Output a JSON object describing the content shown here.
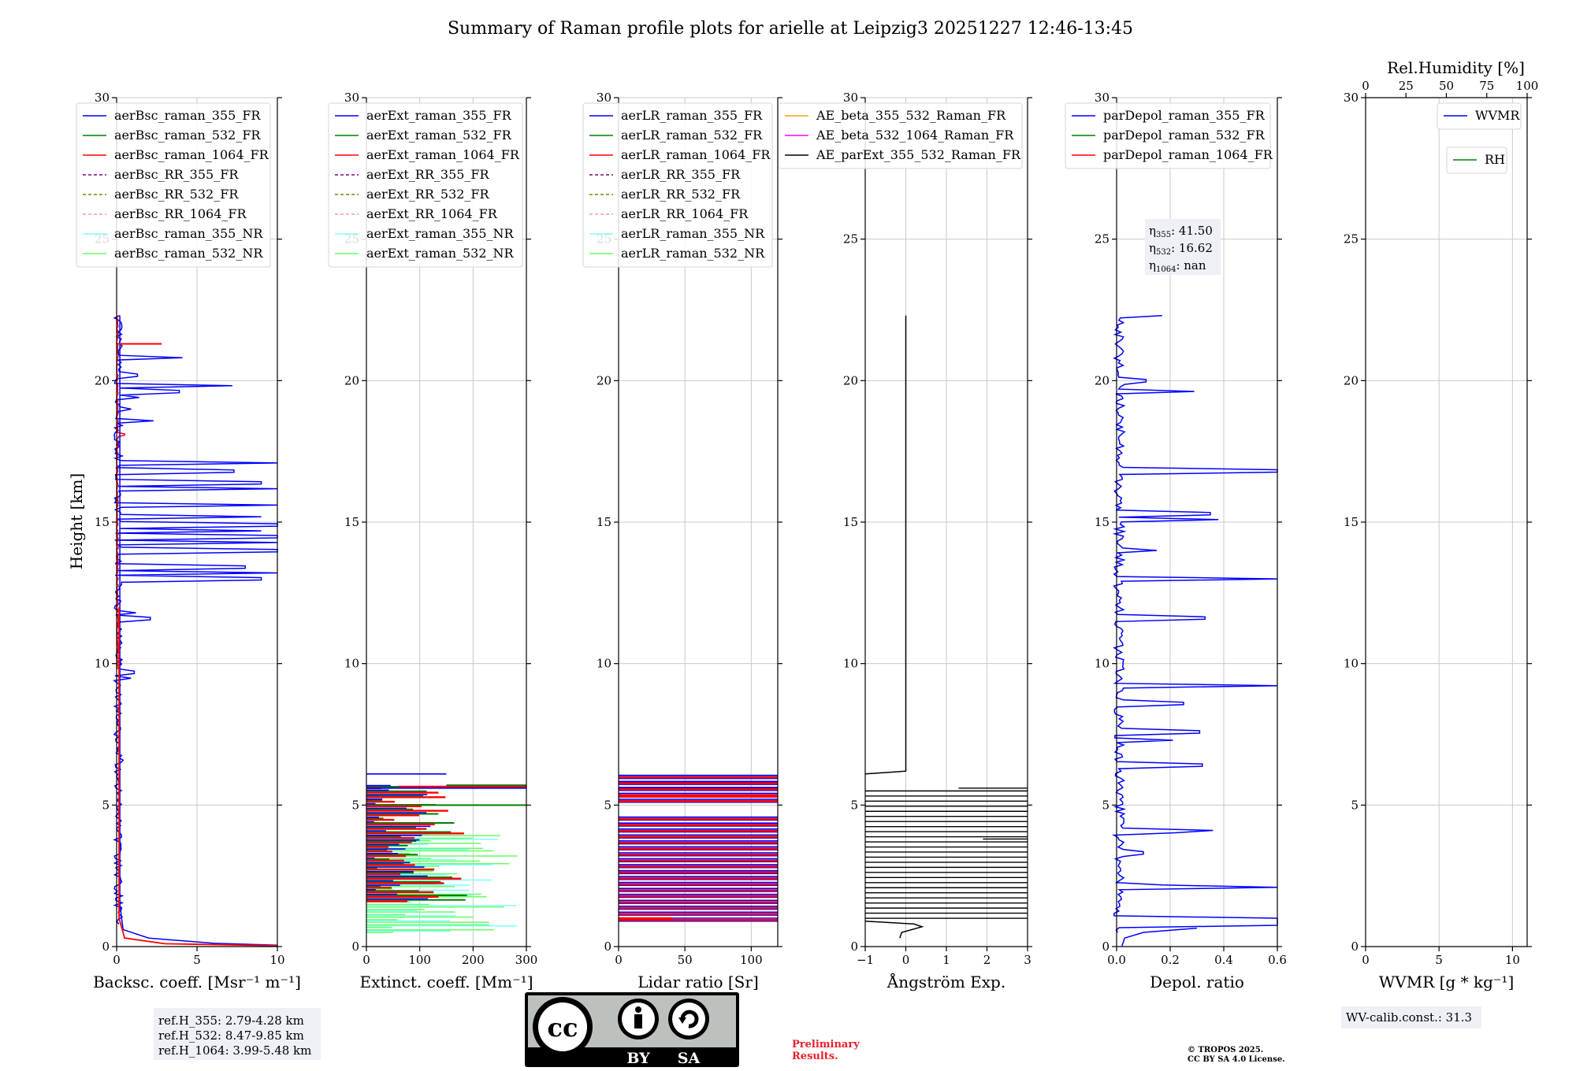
{
  "title": "Summary of Raman profile plots for arielle at Leipzig3 20251227 12:46-13:45",
  "ylabel": "Height [km]",
  "ylim": [
    0,
    30
  ],
  "yticks": [
    0,
    5,
    10,
    15,
    20,
    25,
    30
  ],
  "colors": {
    "blue": "#0000ff",
    "green": "#008000",
    "red": "#ff0000",
    "purple": "#800080",
    "olive": "#808000",
    "salmon": "#ff9999",
    "cyan": "#7fffff",
    "lightgreen": "#66ff66",
    "orange": "#ffa500",
    "magenta": "#ff00ff",
    "black": "#000000"
  },
  "chart_data": [
    {
      "type": "line",
      "id": "bsc",
      "xlabel": "Backsc. coeff. [Msr⁻¹ m⁻¹]",
      "xlim": [
        0,
        10
      ],
      "xticks": [
        "0",
        "5",
        "10"
      ],
      "xtickvals": [
        0,
        5,
        10
      ],
      "legend": [
        {
          "label": "aerBsc_raman_355_FR",
          "color": "blue",
          "style": "solid"
        },
        {
          "label": "aerBsc_raman_532_FR",
          "color": "green",
          "style": "solid"
        },
        {
          "label": "aerBsc_raman_1064_FR",
          "color": "red",
          "style": "solid"
        },
        {
          "label": "aerBsc_RR_355_FR",
          "color": "purple",
          "style": "dashed"
        },
        {
          "label": "aerBsc_RR_532_FR",
          "color": "olive",
          "style": "dashed"
        },
        {
          "label": "aerBsc_RR_1064_FR",
          "color": "salmon",
          "style": "dashed"
        },
        {
          "label": "aerBsc_raman_355_NR",
          "color": "cyan",
          "style": "solid"
        },
        {
          "label": "aerBsc_raman_532_NR",
          "color": "lightgreen",
          "style": "solid"
        }
      ]
    },
    {
      "type": "line",
      "id": "ext",
      "xlabel": "Extinct. coeff. [Mm⁻¹]",
      "xlim": [
        0,
        300
      ],
      "xticks": [
        "0",
        "100",
        "200",
        "300"
      ],
      "xtickvals": [
        0,
        100,
        200,
        300
      ],
      "legend": [
        {
          "label": "aerExt_raman_355_FR",
          "color": "blue",
          "style": "solid"
        },
        {
          "label": "aerExt_raman_532_FR",
          "color": "green",
          "style": "solid"
        },
        {
          "label": "aerExt_raman_1064_FR",
          "color": "red",
          "style": "solid"
        },
        {
          "label": "aerExt_RR_355_FR",
          "color": "purple",
          "style": "dashed"
        },
        {
          "label": "aerExt_RR_532_FR",
          "color": "olive",
          "style": "dashed"
        },
        {
          "label": "aerExt_RR_1064_FR",
          "color": "salmon",
          "style": "dashed"
        },
        {
          "label": "aerExt_raman_355_NR",
          "color": "cyan",
          "style": "solid"
        },
        {
          "label": "aerExt_raman_532_NR",
          "color": "lightgreen",
          "style": "solid"
        }
      ]
    },
    {
      "type": "line",
      "id": "lr",
      "xlabel": "Lidar ratio [Sr]",
      "xlim": [
        0,
        120
      ],
      "xticks": [
        "0",
        "50",
        "100"
      ],
      "xtickvals": [
        0,
        50,
        100
      ],
      "legend": [
        {
          "label": "aerLR_raman_355_FR",
          "color": "blue",
          "style": "solid"
        },
        {
          "label": "aerLR_raman_532_FR",
          "color": "green",
          "style": "solid"
        },
        {
          "label": "aerLR_raman_1064_FR",
          "color": "red",
          "style": "solid"
        },
        {
          "label": "aerLR_RR_355_FR",
          "color": "purple",
          "style": "dashed"
        },
        {
          "label": "aerLR_RR_532_FR",
          "color": "olive",
          "style": "dashed"
        },
        {
          "label": "aerLR_RR_1064_FR",
          "color": "salmon",
          "style": "dashed"
        },
        {
          "label": "aerLR_raman_355_NR",
          "color": "cyan",
          "style": "solid"
        },
        {
          "label": "aerLR_raman_532_NR",
          "color": "lightgreen",
          "style": "solid"
        }
      ]
    },
    {
      "type": "line",
      "id": "ae",
      "xlabel": "Ångström Exp.",
      "xlim": [
        -1,
        3
      ],
      "xticks": [
        "−1",
        "0",
        "1",
        "2",
        "3"
      ],
      "xtickvals": [
        -1,
        0,
        1,
        2,
        3
      ],
      "legend": [
        {
          "label": "AE_beta_355_532_Raman_FR",
          "color": "orange",
          "style": "solid"
        },
        {
          "label": "AE_beta_532_1064_Raman_FR",
          "color": "magenta",
          "style": "solid"
        },
        {
          "label": "AE_parExt_355_532_Raman_FR",
          "color": "black",
          "style": "solid"
        }
      ]
    },
    {
      "type": "line",
      "id": "dep",
      "xlabel": "Depol. ratio",
      "xlim": [
        0,
        0.6
      ],
      "xticks": [
        "0.0",
        "0.2",
        "0.4",
        "0.6"
      ],
      "xtickvals": [
        0,
        0.2,
        0.4,
        0.6
      ],
      "legend": [
        {
          "label": "parDepol_raman_355_FR",
          "color": "blue",
          "style": "solid"
        },
        {
          "label": "parDepol_raman_532_FR",
          "color": "green",
          "style": "solid"
        },
        {
          "label": "parDepol_raman_1064_FR",
          "color": "red",
          "style": "solid"
        }
      ],
      "annotation": [
        {
          "sym": "η",
          "sub": "355",
          "value": ": 41.50"
        },
        {
          "sym": "η",
          "sub": "532",
          "value": ": 16.62"
        },
        {
          "sym": "η",
          "sub": "1064",
          "value": ": nan"
        }
      ]
    },
    {
      "type": "line",
      "id": "wv",
      "xlabel": "WVMR [g * kg⁻¹]",
      "xlim": [
        0,
        11
      ],
      "xticks": [
        "0",
        "5",
        "10"
      ],
      "xtickvals": [
        0,
        5,
        10
      ],
      "top_axis": {
        "label": "Rel.Humidity [%]",
        "xlim": [
          0,
          100
        ],
        "xticks": [
          "0",
          "25",
          "50",
          "75",
          "100"
        ],
        "xtickvals": [
          0,
          25,
          50,
          75,
          100
        ]
      },
      "legend": [
        {
          "label": "WVMR",
          "color": "blue",
          "style": "solid"
        }
      ],
      "legend2": [
        {
          "label": "RH",
          "color": "green",
          "style": "solid"
        }
      ]
    }
  ],
  "refh": [
    "ref.H_355: 2.79-4.28 km",
    "ref.H_532: 8.47-9.85 km",
    "ref.H_1064: 3.99-5.48 km"
  ],
  "wv_calib": "WV-calib.const.: 31.3",
  "license_badge": {
    "left": "BY",
    "right": "SA"
  },
  "preliminary": [
    "Preliminary",
    "Results."
  ],
  "copyright": [
    "© TROPOS 2025.",
    "CC BY SA 4.0 License."
  ]
}
